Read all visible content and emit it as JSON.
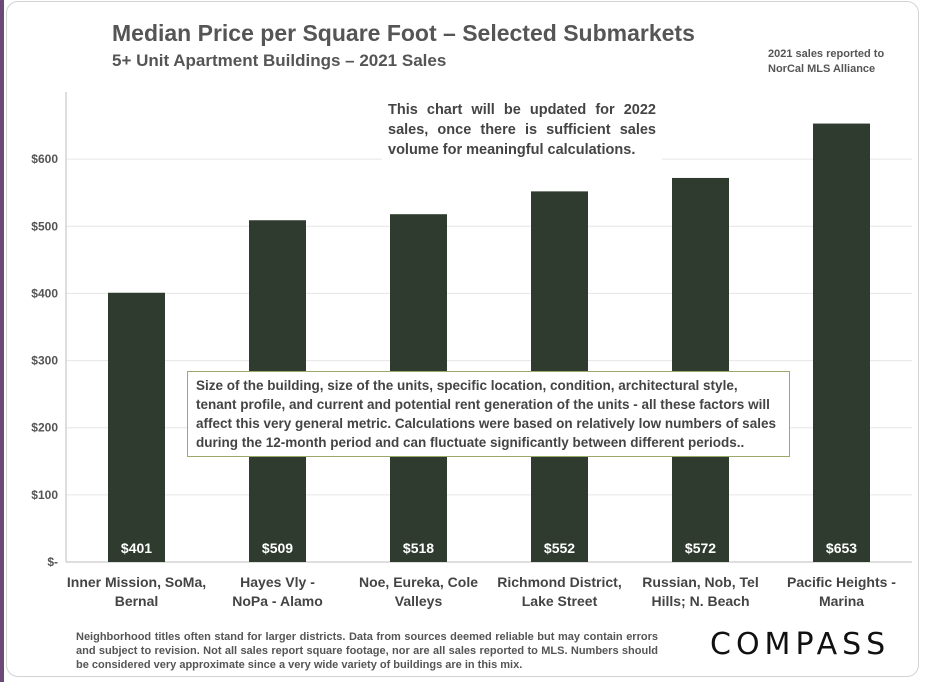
{
  "title": "Median Price per Square Foot – Selected Submarkets",
  "subtitle": "5+ Unit Apartment Buildings – 2021 Sales",
  "source_note": "2021 sales reported to NorCal MLS Alliance",
  "top_note": "This chart will be updated for 2022 sales, once there is sufficient sales volume for meaningful calculations.",
  "middle_note": "Size of the building, size of the units, specific location, condition, architectural style, tenant profile, and current and potential rent generation of the units - all these factors will affect this very general metric. Calculations were based on relatively low numbers of sales during the 12-month period and can fluctuate significantly between different periods..",
  "footer_note": "Neighborhood titles often stand for larger districts. Data from sources deemed reliable but may contain errors and subject to revision. Not all sales report square footage, nor are all sales reported to MLS. Numbers should be considered very approximate since a very wide variety of buildings are in this mix.",
  "logo_text": "COMPASS",
  "colors": {
    "bar": "#2e3b2e",
    "gridline": "#e6e6e6",
    "note_border": "#9aa86a"
  },
  "chart_data": {
    "type": "bar",
    "title": "Median Price per Square Foot – Selected Submarkets",
    "subtitle": "5+ Unit Apartment Buildings – 2021 Sales",
    "categories": [
      [
        "Inner Mission, SoMa,",
        "Bernal"
      ],
      [
        "Hayes Vly -",
        "NoPa - Alamo"
      ],
      [
        "Noe, Eureka, Cole",
        "Valleys"
      ],
      [
        "Richmond District,",
        "Lake Street"
      ],
      [
        "Russian, Nob, Tel",
        "Hills; N. Beach"
      ],
      [
        "Pacific Heights -",
        "Marina"
      ]
    ],
    "values": [
      401,
      509,
      518,
      552,
      572,
      653
    ],
    "data_labels": [
      "$401",
      "$509",
      "$518",
      "$552",
      "$572",
      "$653"
    ],
    "yticks": [
      0,
      100,
      200,
      300,
      400,
      500,
      600
    ],
    "ytick_labels": [
      "$-",
      "$100",
      "$200",
      "$300",
      "$400",
      "$500",
      "$600"
    ],
    "ylim": [
      0,
      700
    ],
    "xlabel": "",
    "ylabel": "",
    "grid": true
  }
}
